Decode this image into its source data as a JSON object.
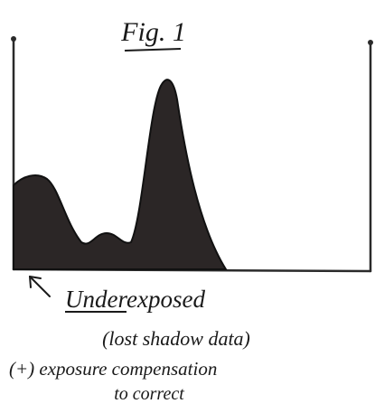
{
  "title": "Fig. 1",
  "caption": {
    "heading": "Underexposed",
    "subheading": "(lost shadow data)",
    "advice_line1": "(+) exposure compensation",
    "advice_line2": "to correct"
  }
}
